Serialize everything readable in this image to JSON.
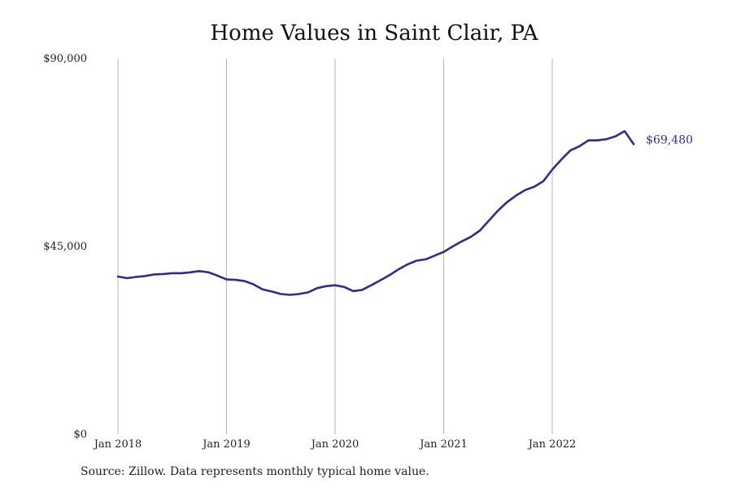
{
  "chart_data": {
    "type": "line",
    "title": "Home Values in Saint Clair, PA",
    "source": "Source: Zillow. Data represents monthly typical home value.",
    "xlabel": "",
    "ylabel": "",
    "x_ticks": [
      "Jan 2018",
      "Jan 2019",
      "Jan 2020",
      "Jan 2021",
      "Jan 2022"
    ],
    "y_ticks": [
      "$0",
      "$45,000",
      "$90,000"
    ],
    "ylim": [
      0,
      90000
    ],
    "grid": "vertical",
    "line_color": "#2e2d8a",
    "end_label": "$69,480",
    "series": [
      {
        "x": [
          "2018-01",
          "2018-02",
          "2018-03",
          "2018-04",
          "2018-05",
          "2018-06",
          "2018-07",
          "2018-08",
          "2018-09",
          "2018-10",
          "2018-11",
          "2018-12",
          "2019-01",
          "2019-02",
          "2019-03",
          "2019-04",
          "2019-05",
          "2019-06",
          "2019-07",
          "2019-08",
          "2019-09",
          "2019-10",
          "2019-11",
          "2019-12",
          "2020-01",
          "2020-02",
          "2020-03",
          "2020-04",
          "2020-05",
          "2020-06",
          "2020-07",
          "2020-08",
          "2020-09",
          "2020-10",
          "2020-11",
          "2020-12",
          "2021-01",
          "2021-02",
          "2021-03",
          "2021-04",
          "2021-05",
          "2021-06",
          "2021-07",
          "2021-08",
          "2021-09",
          "2021-10",
          "2021-11",
          "2021-12",
          "2022-01",
          "2022-02",
          "2022-03",
          "2022-04",
          "2022-05",
          "2022-06",
          "2022-07",
          "2022-08",
          "2022-09",
          "2022-10"
        ],
        "values": [
          37800,
          37400,
          37700,
          37900,
          38300,
          38400,
          38600,
          38600,
          38800,
          39100,
          38800,
          38000,
          37100,
          37000,
          36700,
          35900,
          34700,
          34200,
          33600,
          33400,
          33600,
          34000,
          35000,
          35500,
          35700,
          35300,
          34300,
          34600,
          35700,
          36900,
          38100,
          39500,
          40700,
          41600,
          41900,
          42800,
          43700,
          45000,
          46200,
          47300,
          48800,
          51200,
          53600,
          55600,
          57200,
          58500,
          59300,
          60600,
          63400,
          65800,
          68000,
          69000,
          70400,
          70400,
          70700,
          71400,
          72600,
          69480
        ]
      }
    ]
  }
}
